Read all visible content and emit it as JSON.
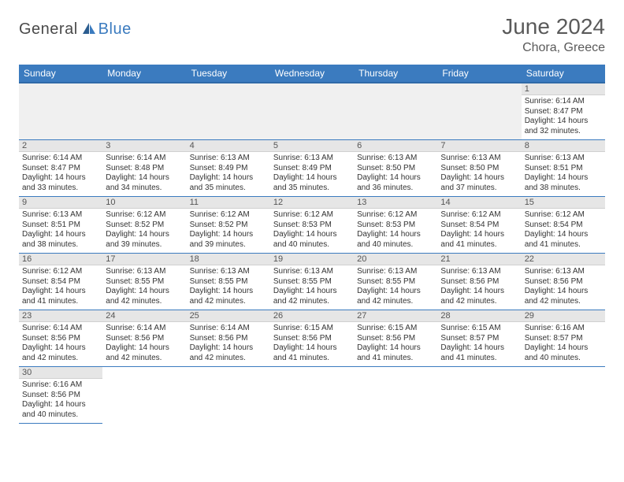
{
  "logo": {
    "text1": "General",
    "text2": "Blue",
    "color1": "#4a4a4a",
    "color2": "#3b7bbf"
  },
  "header": {
    "month": "June 2024",
    "location": "Chora, Greece"
  },
  "styling": {
    "header_bg": "#3b7bbf",
    "header_fg": "#ffffff",
    "daynum_bg": "#e6e6e6",
    "row_border": "#3b7bbf",
    "month_fontsize": 28,
    "location_fontsize": 16,
    "th_fontsize": 12,
    "cell_fontsize": 10
  },
  "weekdays": [
    "Sunday",
    "Monday",
    "Tuesday",
    "Wednesday",
    "Thursday",
    "Friday",
    "Saturday"
  ],
  "days": {
    "1": {
      "sunrise": "6:14 AM",
      "sunset": "8:47 PM",
      "daylight": "14 hours and 32 minutes."
    },
    "2": {
      "sunrise": "6:14 AM",
      "sunset": "8:47 PM",
      "daylight": "14 hours and 33 minutes."
    },
    "3": {
      "sunrise": "6:14 AM",
      "sunset": "8:48 PM",
      "daylight": "14 hours and 34 minutes."
    },
    "4": {
      "sunrise": "6:13 AM",
      "sunset": "8:49 PM",
      "daylight": "14 hours and 35 minutes."
    },
    "5": {
      "sunrise": "6:13 AM",
      "sunset": "8:49 PM",
      "daylight": "14 hours and 35 minutes."
    },
    "6": {
      "sunrise": "6:13 AM",
      "sunset": "8:50 PM",
      "daylight": "14 hours and 36 minutes."
    },
    "7": {
      "sunrise": "6:13 AM",
      "sunset": "8:50 PM",
      "daylight": "14 hours and 37 minutes."
    },
    "8": {
      "sunrise": "6:13 AM",
      "sunset": "8:51 PM",
      "daylight": "14 hours and 38 minutes."
    },
    "9": {
      "sunrise": "6:13 AM",
      "sunset": "8:51 PM",
      "daylight": "14 hours and 38 minutes."
    },
    "10": {
      "sunrise": "6:12 AM",
      "sunset": "8:52 PM",
      "daylight": "14 hours and 39 minutes."
    },
    "11": {
      "sunrise": "6:12 AM",
      "sunset": "8:52 PM",
      "daylight": "14 hours and 39 minutes."
    },
    "12": {
      "sunrise": "6:12 AM",
      "sunset": "8:53 PM",
      "daylight": "14 hours and 40 minutes."
    },
    "13": {
      "sunrise": "6:12 AM",
      "sunset": "8:53 PM",
      "daylight": "14 hours and 40 minutes."
    },
    "14": {
      "sunrise": "6:12 AM",
      "sunset": "8:54 PM",
      "daylight": "14 hours and 41 minutes."
    },
    "15": {
      "sunrise": "6:12 AM",
      "sunset": "8:54 PM",
      "daylight": "14 hours and 41 minutes."
    },
    "16": {
      "sunrise": "6:12 AM",
      "sunset": "8:54 PM",
      "daylight": "14 hours and 41 minutes."
    },
    "17": {
      "sunrise": "6:13 AM",
      "sunset": "8:55 PM",
      "daylight": "14 hours and 42 minutes."
    },
    "18": {
      "sunrise": "6:13 AM",
      "sunset": "8:55 PM",
      "daylight": "14 hours and 42 minutes."
    },
    "19": {
      "sunrise": "6:13 AM",
      "sunset": "8:55 PM",
      "daylight": "14 hours and 42 minutes."
    },
    "20": {
      "sunrise": "6:13 AM",
      "sunset": "8:55 PM",
      "daylight": "14 hours and 42 minutes."
    },
    "21": {
      "sunrise": "6:13 AM",
      "sunset": "8:56 PM",
      "daylight": "14 hours and 42 minutes."
    },
    "22": {
      "sunrise": "6:13 AM",
      "sunset": "8:56 PM",
      "daylight": "14 hours and 42 minutes."
    },
    "23": {
      "sunrise": "6:14 AM",
      "sunset": "8:56 PM",
      "daylight": "14 hours and 42 minutes."
    },
    "24": {
      "sunrise": "6:14 AM",
      "sunset": "8:56 PM",
      "daylight": "14 hours and 42 minutes."
    },
    "25": {
      "sunrise": "6:14 AM",
      "sunset": "8:56 PM",
      "daylight": "14 hours and 42 minutes."
    },
    "26": {
      "sunrise": "6:15 AM",
      "sunset": "8:56 PM",
      "daylight": "14 hours and 41 minutes."
    },
    "27": {
      "sunrise": "6:15 AM",
      "sunset": "8:56 PM",
      "daylight": "14 hours and 41 minutes."
    },
    "28": {
      "sunrise": "6:15 AM",
      "sunset": "8:57 PM",
      "daylight": "14 hours and 41 minutes."
    },
    "29": {
      "sunrise": "6:16 AM",
      "sunset": "8:57 PM",
      "daylight": "14 hours and 40 minutes."
    },
    "30": {
      "sunrise": "6:16 AM",
      "sunset": "8:56 PM",
      "daylight": "14 hours and 40 minutes."
    }
  },
  "labels": {
    "sunrise": "Sunrise: ",
    "sunset": "Sunset: ",
    "daylight": "Daylight: "
  },
  "grid": [
    [
      null,
      null,
      null,
      null,
      null,
      null,
      1
    ],
    [
      2,
      3,
      4,
      5,
      6,
      7,
      8
    ],
    [
      9,
      10,
      11,
      12,
      13,
      14,
      15
    ],
    [
      16,
      17,
      18,
      19,
      20,
      21,
      22
    ],
    [
      23,
      24,
      25,
      26,
      27,
      28,
      29
    ],
    [
      30,
      null,
      null,
      null,
      null,
      null,
      null
    ]
  ]
}
